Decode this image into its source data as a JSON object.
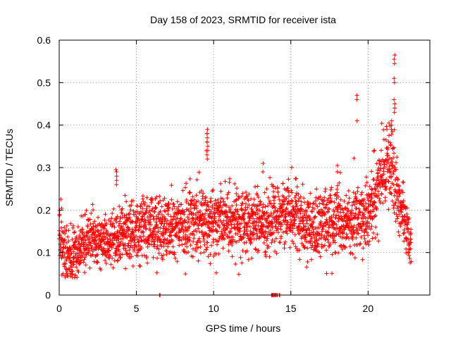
{
  "chart_data": {
    "type": "scatter",
    "title": "Day 158 of 2023, SRMTID for receiver ista",
    "xlabel": "GPS time / hours",
    "ylabel": "SRMTID / TECUs",
    "xlim": [
      0,
      24
    ],
    "ylim": [
      0,
      0.6
    ],
    "xticks": [
      0,
      5,
      10,
      15,
      20
    ],
    "xtick_labels": [
      "0",
      "5",
      "10",
      "15",
      "20"
    ],
    "yticks": [
      0,
      0.1,
      0.2,
      0.3,
      0.4,
      0.5,
      0.6
    ],
    "ytick_labels": [
      "0",
      "0.1",
      "0.2",
      "0.3",
      "0.4",
      "0.5",
      "0.6"
    ],
    "grid": true,
    "marker": "plus",
    "color": "#ff0000",
    "series": [
      {
        "name": "SRMTID",
        "trend_x": [
          0,
          0.5,
          1,
          1.5,
          2,
          2.5,
          3,
          3.5,
          4,
          4.5,
          5,
          5.5,
          6,
          6.5,
          7,
          7.5,
          8,
          8.5,
          9,
          9.5,
          10,
          10.5,
          11,
          11.5,
          12,
          12.5,
          13,
          13.5,
          14,
          14.5,
          15,
          15.5,
          16,
          16.5,
          17,
          17.5,
          18,
          18.5,
          19,
          19.5,
          20,
          20.5,
          21,
          21.5,
          22,
          22.5,
          22.8
        ],
        "trend_y": [
          0.15,
          0.11,
          0.09,
          0.12,
          0.14,
          0.13,
          0.12,
          0.13,
          0.14,
          0.15,
          0.15,
          0.16,
          0.16,
          0.15,
          0.16,
          0.16,
          0.16,
          0.18,
          0.18,
          0.18,
          0.17,
          0.18,
          0.17,
          0.17,
          0.17,
          0.17,
          0.17,
          0.16,
          0.18,
          0.19,
          0.19,
          0.18,
          0.16,
          0.16,
          0.17,
          0.17,
          0.18,
          0.17,
          0.18,
          0.18,
          0.19,
          0.24,
          0.31,
          0.3,
          0.22,
          0.16,
          0.11
        ],
        "spread": [
          0.05,
          0.05,
          0.04,
          0.04,
          0.04,
          0.04,
          0.04,
          0.04,
          0.05,
          0.05,
          0.05,
          0.05,
          0.05,
          0.05,
          0.05,
          0.05,
          0.05,
          0.06,
          0.06,
          0.06,
          0.05,
          0.05,
          0.05,
          0.05,
          0.05,
          0.05,
          0.05,
          0.05,
          0.05,
          0.05,
          0.05,
          0.05,
          0.05,
          0.05,
          0.05,
          0.05,
          0.05,
          0.05,
          0.05,
          0.05,
          0.05,
          0.06,
          0.06,
          0.07,
          0.06,
          0.05,
          0.03
        ],
        "points_per_hour": 120,
        "spikes": [
          {
            "x": 3.7,
            "y": [
              0.29,
              0.28,
              0.295,
              0.26,
              0.27
            ]
          },
          {
            "x": 9.6,
            "y": [
              0.39,
              0.38,
              0.37,
              0.36,
              0.35,
              0.34,
              0.33,
              0.32
            ]
          },
          {
            "x": 9.55,
            "y": [
              0.38,
              0.36,
              0.34
            ]
          },
          {
            "x": 13.2,
            "y": [
              0.31,
              0.29
            ]
          },
          {
            "x": 19.3,
            "y": [
              0.47,
              0.46,
              0.41
            ]
          },
          {
            "x": 21.7,
            "y": [
              0.565,
              0.555,
              0.545,
              0.51,
              0.5,
              0.46,
              0.45,
              0.44,
              0.43
            ]
          },
          {
            "x": 21.5,
            "y": [
              0.41,
              0.4,
              0.39
            ]
          },
          {
            "x": 18.0,
            "y": [
              0.305,
              0.29
            ]
          }
        ],
        "zero_points_x": [
          6.5,
          13.75,
          13.8,
          13.9,
          14.0,
          14.1,
          14.25
        ]
      }
    ]
  }
}
